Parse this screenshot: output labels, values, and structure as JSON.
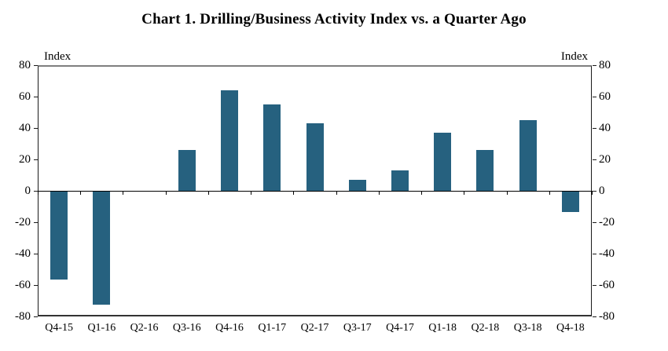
{
  "title": "Chart 1. Drilling/Business Activity Index vs. a Quarter Ago",
  "chart_data": {
    "type": "bar",
    "title": "Chart 1. Drilling/Business Activity Index vs. a Quarter Ago",
    "categories": [
      "Q4-15",
      "Q1-16",
      "Q2-16",
      "Q3-16",
      "Q4-16",
      "Q1-17",
      "Q2-17",
      "Q3-17",
      "Q4-17",
      "Q1-18",
      "Q2-18",
      "Q3-18",
      "Q4-18"
    ],
    "values": [
      -56,
      -72,
      0,
      26,
      64,
      55,
      43,
      7,
      13,
      37,
      26,
      45,
      -13
    ],
    "ylim": [
      -80,
      80
    ],
    "yticks": [
      80,
      60,
      40,
      20,
      0,
      -20,
      -40,
      -60,
      -80
    ],
    "ytick_interval": 20,
    "ylabel_left": "Index",
    "ylabel_right": "Index",
    "xlabel": "",
    "legend": "none",
    "grid": false,
    "zero_line": true,
    "bar_color": "#26617f",
    "axis_color": "#000000",
    "top_border_color": "#7f7f7f",
    "background_color": "#ffffff"
  }
}
